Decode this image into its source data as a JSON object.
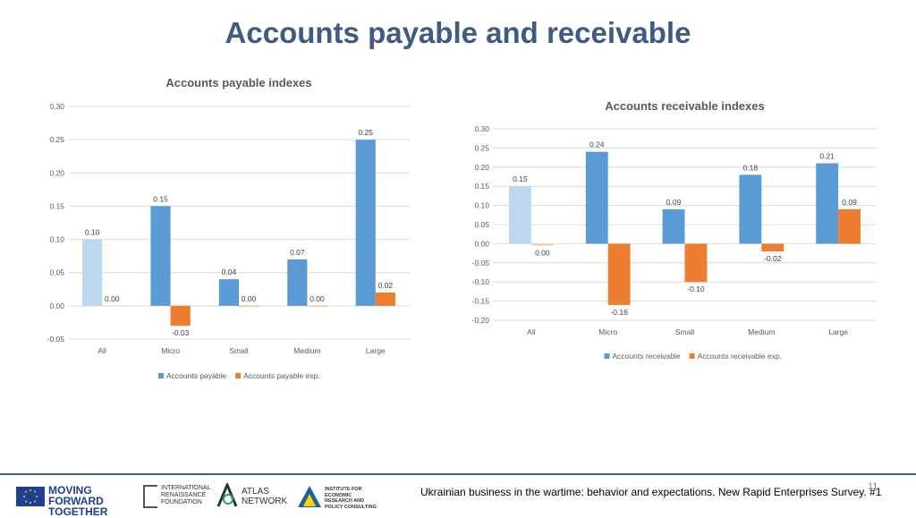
{
  "slide": {
    "title": "Accounts payable and receivable",
    "footer_caption": "Ukrainian business in the wartime: behavior and expectations. New Rapid Enterprises Survey. #1",
    "page_number": "11"
  },
  "logos": {
    "eu": "MOVING FORWARD TOGETHER",
    "irf": "INTERNATIONAL RENAISSANCE FOUNDATION",
    "atlas": "ATLAS NETWORK",
    "ier": "INSTITUTE FOR ECONOMIC RESEARCH AND POLICY CONSULTING"
  },
  "colors": {
    "title": "#3f5b84",
    "series_main": "#5b9bd5",
    "series_main_first": "#bdd7ee",
    "series_exp": "#ed7d31",
    "series_exp_first": "#f8cbad",
    "grid": "#d9d9d9"
  },
  "chart_data": [
    {
      "type": "bar",
      "title": "Accounts payable indexes",
      "categories": [
        "All",
        "Micro",
        "Small",
        "Medium",
        "Large"
      ],
      "series": [
        {
          "name": "Accounts payable",
          "values": [
            0.1,
            0.15,
            0.04,
            0.07,
            0.25
          ],
          "labels": [
            "0.10",
            "0.15",
            "0.04",
            "0.07",
            "0.25"
          ]
        },
        {
          "name": "Accounts payable exp.",
          "values": [
            0.0,
            -0.03,
            0.0,
            0.0,
            0.02
          ],
          "labels": [
            "0.00",
            "-0.03",
            "0.00",
            "0.00",
            "0.02"
          ]
        }
      ],
      "ylim": [
        -0.05,
        0.3
      ],
      "yticks": [
        "-0.05",
        "0.00",
        "0.05",
        "0.10",
        "0.15",
        "0.20",
        "0.25",
        "0.30"
      ],
      "grid": true,
      "legend": "bottom"
    },
    {
      "type": "bar",
      "title": "Accounts receivable indexes",
      "categories": [
        "All",
        "Micro",
        "Small",
        "Medium",
        "Large"
      ],
      "series": [
        {
          "name": "Accounts receivable",
          "values": [
            0.15,
            0.24,
            0.09,
            0.18,
            0.21
          ],
          "labels": [
            "0.15",
            "0.24",
            "0.09",
            "0.18",
            "0.21"
          ]
        },
        {
          "name": "Accounts receivable exp.",
          "values": [
            -0.005,
            -0.16,
            -0.1,
            -0.02,
            0.09
          ],
          "labels": [
            "0.00",
            "-0.16",
            "-0.10",
            "-0.02",
            "0.09"
          ]
        }
      ],
      "ylim": [
        -0.2,
        0.3
      ],
      "yticks": [
        "-0.20",
        "-0.15",
        "-0.10",
        "-0.05",
        "0.00",
        "0.05",
        "0.10",
        "0.15",
        "0.20",
        "0.25",
        "0.30"
      ],
      "grid": true,
      "legend": "bottom"
    }
  ]
}
